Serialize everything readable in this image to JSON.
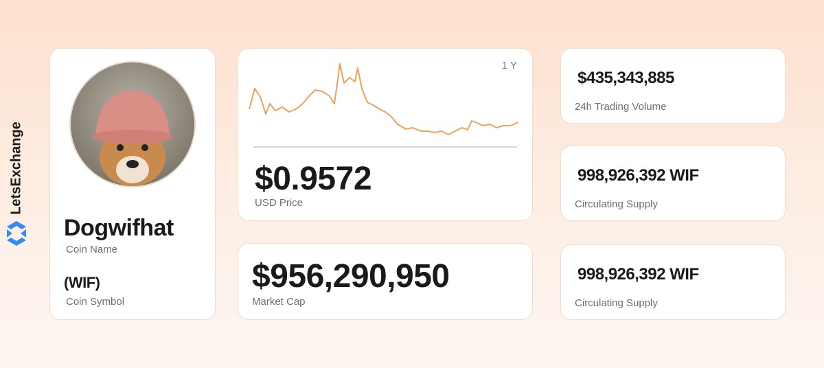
{
  "brand": "LetsExchange",
  "coin": {
    "name": "Dogwifhat",
    "name_label": "Coin Name",
    "symbol": "(WIF)",
    "symbol_label": "Coin Symbol"
  },
  "price_card": {
    "period": "1 Y",
    "price": "$0.9572",
    "price_label": "USD Price"
  },
  "market_cap": {
    "value": "$956,290,950",
    "label": "Market Cap"
  },
  "stats": [
    {
      "value": "$435,343,885",
      "label": "24h Trading Volume"
    },
    {
      "value": "998,926,392 WIF",
      "label": "Circulating Supply"
    },
    {
      "value": "998,926,392 WIF",
      "label": "Circulating Supply"
    }
  ]
}
